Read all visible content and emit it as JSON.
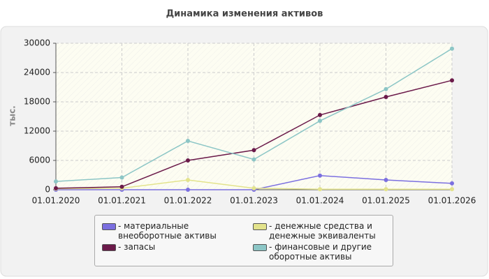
{
  "chart_data": {
    "type": "line",
    "title": "Динамика изменения активов",
    "ylabel": "тыс.",
    "categories": [
      "01.01.2020",
      "01.01.2021",
      "01.01.2022",
      "01.01.2023",
      "01.01.2024",
      "01.01.2025",
      "01.01.2026"
    ],
    "series": [
      {
        "name": "материальные внеоборотные активы",
        "color": "#7b6fe0",
        "values": [
          0,
          0,
          0,
          0,
          2900,
          2000,
          1300
        ]
      },
      {
        "name": "денежные средства и денежные эквиваленты",
        "color": "#e3e38c",
        "values": [
          200,
          300,
          2000,
          300,
          100,
          100,
          100
        ]
      },
      {
        "name": "запасы",
        "color": "#6b1a4a",
        "values": [
          300,
          600,
          6000,
          8100,
          15300,
          19000,
          22400
        ]
      },
      {
        "name": "финансовые и другие оборотные активы",
        "color": "#8cc6c6",
        "values": [
          1700,
          2500,
          10000,
          6200,
          14100,
          20600,
          28900
        ]
      }
    ],
    "ylim": [
      0,
      30000
    ],
    "yticks": [
      0,
      6000,
      12000,
      18000,
      24000,
      30000
    ],
    "grid": true
  }
}
